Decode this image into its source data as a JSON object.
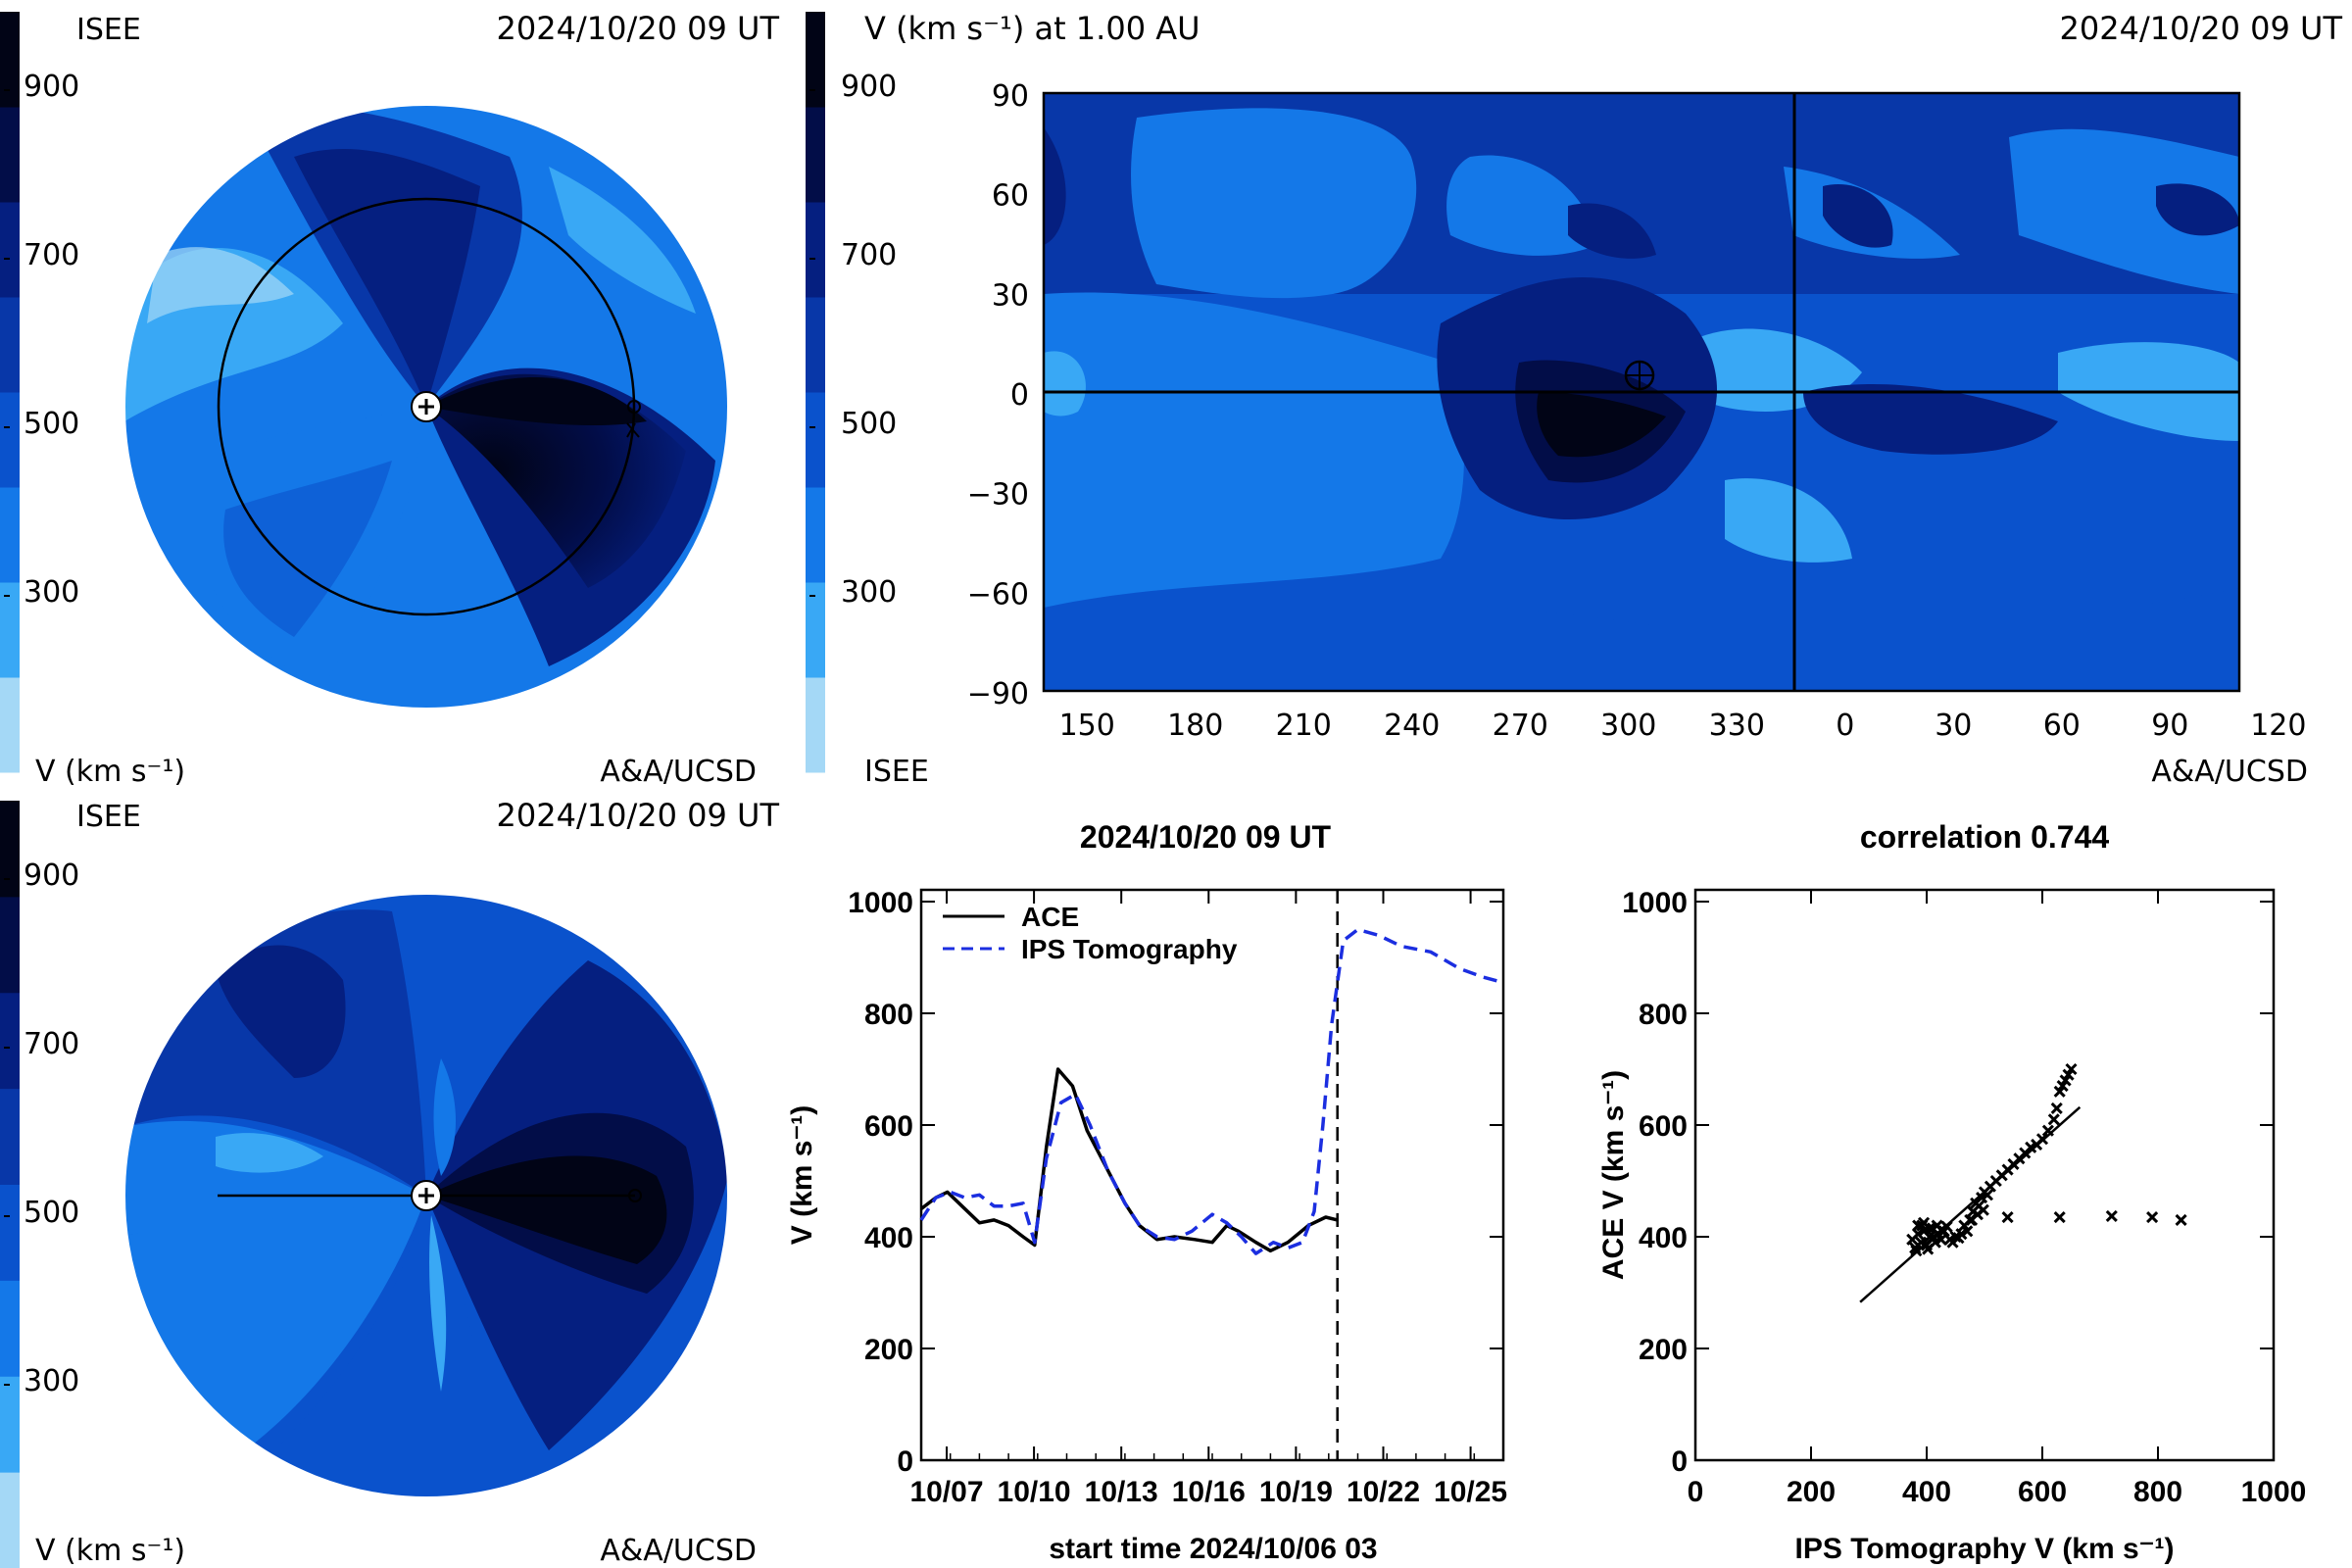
{
  "colors": {
    "scale": [
      "#a4d8f6",
      "#39a8f5",
      "#1478e8",
      "#0a52cc",
      "#0837a8",
      "#051f80",
      "#020d48",
      "#010416"
    ],
    "ips_line": "#1b2ee0",
    "ace_line": "#000000"
  },
  "colorbar_ticks": [
    "900",
    "700",
    "500",
    "300"
  ],
  "panel_tl": {
    "label_left": "ISEE",
    "timestamp": "2024/10/20 09 UT",
    "unit_label": "V (km s⁻¹)",
    "credit": "A&A/UCSD"
  },
  "panel_tr": {
    "title": "V (km s⁻¹) at 1.00 AU",
    "timestamp": "2024/10/20 09 UT",
    "label_left": "ISEE",
    "credit": "A&A/UCSD",
    "y_ticks": [
      "90",
      "60",
      "30",
      "0",
      "−30",
      "−60",
      "−90"
    ],
    "x_ticks": [
      "150",
      "180",
      "210",
      "240",
      "270",
      "300",
      "330",
      "0",
      "30",
      "60",
      "90",
      "120"
    ]
  },
  "panel_bl": {
    "label_left": "ISEE",
    "timestamp": "2024/10/20 09 UT",
    "unit_label": "V (km s⁻¹)",
    "credit": "A&A/UCSD"
  },
  "chart_data": [
    {
      "type": "line",
      "title": "2024/10/20 09 UT",
      "xlabel": "start time 2024/10/06 03",
      "ylabel": "V (km s⁻¹)",
      "ylim": [
        0,
        1000
      ],
      "xlim": [
        0,
        20
      ],
      "x_unit": "days since start time",
      "x_tick_labels": [
        "10/07",
        "10/10",
        "10/13",
        "10/16",
        "10/19",
        "10/22",
        "10/25"
      ],
      "x_tick_positions": [
        0.875,
        3.875,
        6.875,
        9.875,
        12.875,
        15.875,
        18.875
      ],
      "y_tick_labels": [
        "1000",
        "800",
        "600",
        "400",
        "200",
        "0"
      ],
      "vline_x": 14.3,
      "series": [
        {
          "name": "ACE",
          "style": "solid",
          "x": [
            0,
            0.5,
            0.9,
            1.4,
            2.0,
            2.5,
            3.0,
            3.5,
            3.9,
            4.3,
            4.7,
            5.2,
            5.7,
            6.4,
            7.0,
            7.5,
            8.1,
            8.7,
            9.4,
            10.0,
            10.5,
            10.9,
            11.5,
            12.0,
            12.6,
            13.3,
            13.9,
            14.3
          ],
          "y": [
            450,
            470,
            480,
            455,
            425,
            430,
            420,
            400,
            385,
            560,
            700,
            670,
            590,
            520,
            460,
            420,
            395,
            400,
            395,
            390,
            420,
            410,
            390,
            375,
            390,
            420,
            435,
            430
          ]
        },
        {
          "name": "IPS Tomography",
          "style": "dashed",
          "x": [
            0,
            0.5,
            1.0,
            1.5,
            2.0,
            2.5,
            3.0,
            3.5,
            3.9,
            4.3,
            4.8,
            5.3,
            5.8,
            6.4,
            7.0,
            7.5,
            8.1,
            8.7,
            9.3,
            10.0,
            10.5,
            11.0,
            11.5,
            12.1,
            12.6,
            13.1,
            13.5,
            13.8,
            14.1,
            14.5,
            15.0,
            15.7,
            16.5,
            17.5,
            18.5,
            19.3,
            20.0
          ],
          "y": [
            430,
            470,
            480,
            470,
            475,
            455,
            455,
            460,
            390,
            540,
            640,
            655,
            600,
            520,
            460,
            420,
            400,
            395,
            410,
            440,
            425,
            400,
            370,
            390,
            380,
            390,
            445,
            600,
            780,
            930,
            950,
            940,
            920,
            910,
            880,
            865,
            855
          ]
        }
      ]
    },
    {
      "type": "scatter",
      "title": "correlation 0.744",
      "xlabel": "IPS Tomography V (km s⁻¹)",
      "ylabel": "ACE V (km s⁻¹)",
      "xlim": [
        0,
        1000
      ],
      "ylim": [
        0,
        1000
      ],
      "x_tick_labels": [
        "0",
        "200",
        "400",
        "600",
        "800",
        "1000"
      ],
      "y_tick_labels": [
        "1000",
        "800",
        "600",
        "400",
        "200",
        "0"
      ],
      "fit_line": {
        "x": [
          285,
          665
        ],
        "y": [
          283,
          632
        ]
      },
      "points": {
        "x": [
          375,
          380,
          385,
          390,
          395,
          400,
          405,
          410,
          415,
          420,
          425,
          430,
          440,
          450,
          460,
          470,
          475,
          480,
          485,
          490,
          495,
          500,
          505,
          510,
          520,
          530,
          540,
          550,
          560,
          570,
          580,
          590,
          600,
          610,
          620,
          625,
          630,
          635,
          640,
          645,
          650,
          385,
          395,
          405,
          412,
          418,
          425,
          435,
          445,
          455,
          465,
          478,
          488,
          498,
          382,
          392,
          402,
          540,
          630,
          720,
          790,
          840
        ],
        "y": [
          395,
          380,
          405,
          390,
          410,
          385,
          400,
          415,
          390,
          405,
          395,
          410,
          395,
          400,
          405,
          410,
          430,
          445,
          460,
          455,
          470,
          480,
          475,
          490,
          500,
          510,
          520,
          530,
          540,
          550,
          560,
          565,
          575,
          590,
          610,
          630,
          660,
          670,
          680,
          690,
          700,
          420,
          425,
          415,
          400,
          420,
          412,
          418,
          390,
          398,
          420,
          430,
          440,
          448,
          375,
          420,
          378,
          435,
          435,
          437,
          435,
          430
        ]
      }
    }
  ]
}
